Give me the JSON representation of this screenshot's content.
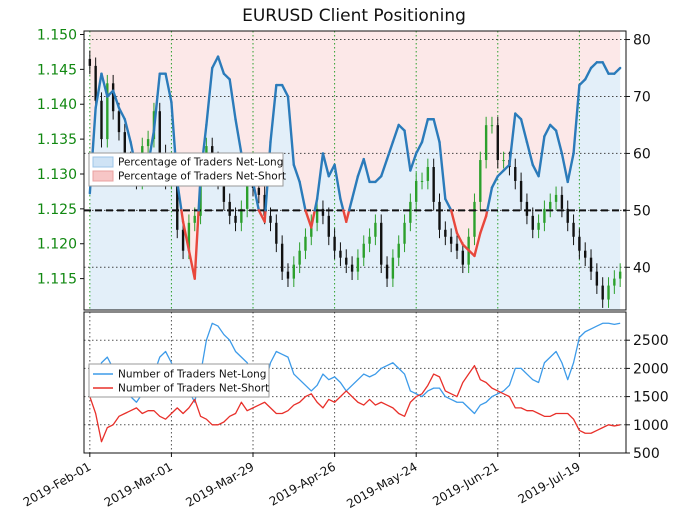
{
  "chart_data": [
    {
      "type": "line",
      "title": "EURUSD Client Positioning",
      "price_axis": {
        "side": "left",
        "ylim": [
          1.1105,
          1.1505
        ],
        "ticks": [
          "1.150",
          "1.145",
          "1.140",
          "1.135",
          "1.130",
          "1.125",
          "1.120",
          "1.115"
        ]
      },
      "percent_axis": {
        "side": "right",
        "ylim": [
          32.5,
          81.5
        ],
        "ticks": [
          "80",
          "70",
          "60",
          "50",
          "40"
        ],
        "reference_line": 50
      },
      "x_ticks": [
        "2019-Feb-01",
        "2019-Mar-01",
        "2019-Mar-29",
        "2019-Apr-26",
        "2019-May-24",
        "2019-Jun-21",
        "2019-Jul-19"
      ],
      "legend": {
        "position": "center-left",
        "entries": [
          {
            "label": "Percentage of Traders Net-Long",
            "color": "#cfe3f5"
          },
          {
            "label": "Percentage of Traders Net-Short",
            "color": "#f7c6c6"
          }
        ]
      },
      "colors": {
        "long": "#2b7bba",
        "short": "#e8473c",
        "candle_up": "#2ca02c",
        "candle_down": "#111111"
      },
      "grid": true,
      "x_day": [
        0,
        2,
        4,
        6,
        8,
        10,
        12,
        14,
        16,
        18,
        20,
        22,
        24,
        26,
        28,
        30,
        32,
        34,
        36,
        38,
        40,
        42,
        44,
        46,
        48,
        50,
        52,
        54,
        56,
        58,
        60,
        62,
        64,
        66,
        68,
        70,
        72,
        74,
        76,
        78,
        80,
        82,
        84,
        86,
        88,
        90,
        92,
        94,
        96,
        98,
        100,
        102,
        104,
        106,
        108,
        110,
        112,
        114,
        116,
        118,
        120,
        122,
        124,
        126,
        128,
        130,
        132,
        134,
        136,
        138,
        140,
        142,
        144,
        146,
        148,
        150,
        152,
        154,
        156,
        158,
        160,
        162,
        164,
        166,
        168,
        170,
        172,
        174,
        176,
        178,
        180,
        182
      ],
      "percent_net_long": [
        53,
        68,
        74,
        70,
        71,
        68,
        66,
        62,
        57,
        55,
        58,
        64,
        74,
        74,
        69,
        55,
        48,
        43,
        38,
        56,
        65,
        75,
        77,
        74,
        73,
        66,
        60,
        58,
        55,
        50,
        48,
        62,
        72,
        72,
        70,
        58,
        55,
        50,
        47,
        52,
        60,
        56,
        58,
        52,
        48,
        52,
        56,
        59,
        55,
        55,
        56,
        59,
        62,
        65,
        64,
        57,
        60,
        62,
        66,
        66,
        62,
        52,
        50,
        46,
        44,
        43,
        42,
        46,
        49,
        54,
        56,
        57,
        58,
        67,
        66,
        62,
        58,
        56,
        63,
        65,
        64,
        60,
        55,
        60,
        72,
        73,
        75,
        76,
        76,
        74,
        74,
        75
      ],
      "price": [
        1.1455,
        1.1405,
        1.135,
        1.143,
        1.139,
        1.136,
        1.132,
        1.13,
        1.129,
        1.134,
        1.135,
        1.139,
        1.133,
        1.129,
        1.13,
        1.122,
        1.119,
        1.123,
        1.124,
        1.131,
        1.134,
        1.132,
        1.129,
        1.126,
        1.124,
        1.123,
        1.125,
        1.129,
        1.128,
        1.127,
        1.124,
        1.123,
        1.12,
        1.116,
        1.115,
        1.117,
        1.119,
        1.121,
        1.123,
        1.125,
        1.124,
        1.121,
        1.119,
        1.118,
        1.117,
        1.116,
        1.118,
        1.12,
        1.121,
        1.123,
        1.117,
        1.115,
        1.118,
        1.12,
        1.123,
        1.126,
        1.129,
        1.129,
        1.131,
        1.126,
        1.122,
        1.121,
        1.12,
        1.119,
        1.117,
        1.121,
        1.126,
        1.132,
        1.137,
        1.137,
        1.132,
        1.132,
        1.131,
        1.129,
        1.126,
        1.124,
        1.122,
        1.123,
        1.125,
        1.126,
        1.127,
        1.125,
        1.123,
        1.121,
        1.119,
        1.118,
        1.116,
        1.114,
        1.112,
        1.114,
        1.115,
        1.116
      ]
    },
    {
      "type": "line",
      "title": "",
      "count_axis": {
        "side": "right",
        "ylim": [
          500,
          3000
        ],
        "ticks": [
          "2500",
          "2000",
          "1500",
          "1000",
          "500"
        ]
      },
      "legend": {
        "position": "center-left",
        "entries": [
          {
            "label": "Number of Traders Net-Long",
            "color": "#3d9be9"
          },
          {
            "label": "Number of Traders Net-Short",
            "color": "#e8302a"
          }
        ]
      },
      "grid": true,
      "x_day": [
        0,
        2,
        4,
        6,
        8,
        10,
        12,
        14,
        16,
        18,
        20,
        22,
        24,
        26,
        28,
        30,
        32,
        34,
        36,
        38,
        40,
        42,
        44,
        46,
        48,
        50,
        52,
        54,
        56,
        58,
        60,
        62,
        64,
        66,
        68,
        70,
        72,
        74,
        76,
        78,
        80,
        82,
        84,
        86,
        88,
        90,
        92,
        94,
        96,
        98,
        100,
        102,
        104,
        106,
        108,
        110,
        112,
        114,
        116,
        118,
        120,
        122,
        124,
        126,
        128,
        130,
        132,
        134,
        136,
        138,
        140,
        142,
        144,
        146,
        148,
        150,
        152,
        154,
        156,
        158,
        160,
        162,
        164,
        166,
        168,
        170,
        172,
        174,
        176,
        178,
        180,
        182
      ],
      "net_long": [
        1500,
        1700,
        2100,
        2200,
        2000,
        1700,
        1600,
        1500,
        1400,
        1550,
        1700,
        1900,
        2200,
        2300,
        2100,
        1800,
        1700,
        1600,
        1400,
        1900,
        2500,
        2800,
        2750,
        2600,
        2500,
        2300,
        2200,
        2100,
        1900,
        1800,
        1700,
        2100,
        2300,
        2250,
        2200,
        1900,
        1800,
        1700,
        1600,
        1700,
        1900,
        1800,
        1850,
        1750,
        1600,
        1700,
        1800,
        1900,
        1850,
        1900,
        2000,
        2050,
        2100,
        2000,
        1900,
        1600,
        1550,
        1500,
        1600,
        1650,
        1650,
        1500,
        1450,
        1400,
        1400,
        1300,
        1200,
        1350,
        1400,
        1500,
        1550,
        1600,
        1700,
        2000,
        2000,
        1900,
        1800,
        1750,
        2100,
        2200,
        2300,
        2100,
        1800,
        2100,
        2550,
        2650,
        2700,
        2750,
        2800,
        2800,
        2780,
        2800
      ],
      "net_short": [
        1500,
        1200,
        700,
        950,
        1000,
        1150,
        1200,
        1250,
        1300,
        1200,
        1250,
        1250,
        1150,
        1100,
        1200,
        1300,
        1200,
        1300,
        1450,
        1150,
        1100,
        1000,
        1000,
        1050,
        1150,
        1200,
        1400,
        1250,
        1300,
        1350,
        1400,
        1300,
        1200,
        1200,
        1250,
        1350,
        1400,
        1500,
        1550,
        1400,
        1300,
        1450,
        1400,
        1500,
        1600,
        1500,
        1400,
        1350,
        1450,
        1350,
        1400,
        1350,
        1300,
        1200,
        1150,
        1400,
        1500,
        1550,
        1700,
        1900,
        1850,
        1600,
        1550,
        1500,
        1750,
        1900,
        2050,
        1800,
        1750,
        1650,
        1600,
        1550,
        1500,
        1300,
        1300,
        1250,
        1250,
        1200,
        1150,
        1150,
        1200,
        1200,
        1200,
        1100,
        900,
        850,
        850,
        900,
        950,
        1000,
        980,
        1000
      ]
    }
  ],
  "bottom_legend_labels": [
    "Number of Traders Net-Long",
    "Number of Traders Net-Short"
  ]
}
